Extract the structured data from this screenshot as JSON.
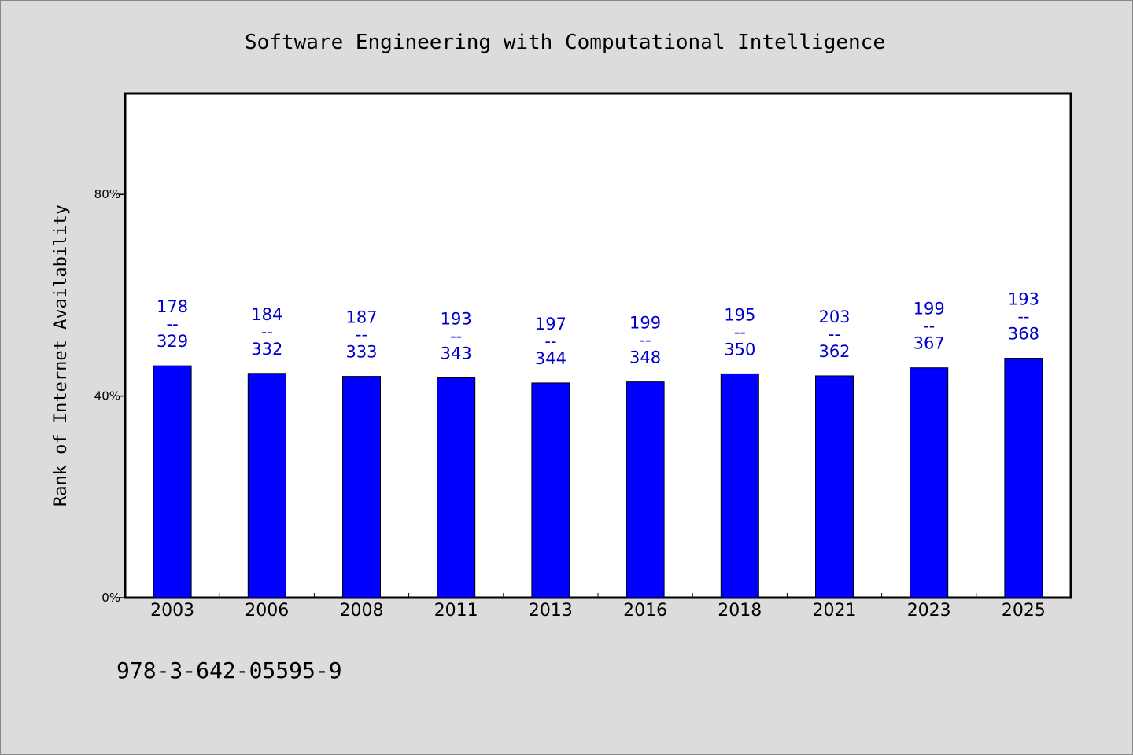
{
  "chart_data": {
    "type": "bar",
    "title": "Software Engineering with Computational Intelligence",
    "ylabel": "Rank of Internet Availability",
    "xlabel": "",
    "categories": [
      "2003",
      "2006",
      "2008",
      "2011",
      "2013",
      "2016",
      "2018",
      "2021",
      "2023",
      "2025"
    ],
    "series": [
      {
        "values": [
          46.0,
          44.5,
          43.9,
          43.6,
          42.6,
          42.8,
          44.4,
          44.0,
          45.6,
          47.5
        ],
        "labels": [
          [
            "178",
            "--",
            "329"
          ],
          [
            "184",
            "--",
            "332"
          ],
          [
            "187",
            "--",
            "333"
          ],
          [
            "193",
            "--",
            "343"
          ],
          [
            "197",
            "--",
            "344"
          ],
          [
            "199",
            "--",
            "348"
          ],
          [
            "195",
            "--",
            "350"
          ],
          [
            "203",
            "--",
            "362"
          ],
          [
            "199",
            "--",
            "367"
          ],
          [
            "193",
            "--",
            "368"
          ]
        ]
      }
    ],
    "ylim": [
      0,
      100
    ],
    "yticks": [
      "0%",
      "40%",
      "80%"
    ],
    "ytick_values": [
      0,
      40,
      80
    ],
    "grid": false,
    "colors": {
      "bar": "#0000ff",
      "label": "#0000cc",
      "background": "#dcdcdc",
      "plot_background": "#ffffff"
    },
    "footer": "978-3-642-05595-9"
  }
}
